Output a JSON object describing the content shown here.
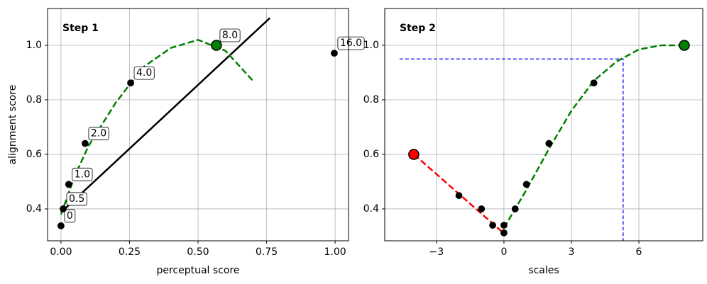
{
  "chart_data": [
    {
      "type": "scatter",
      "title": "Step 1",
      "xlabel": "perceptual score",
      "ylabel": "alignment score",
      "xlim": [
        -0.049,
        1.049
      ],
      "ylim": [
        0.283,
        1.135
      ],
      "xticks": [
        {
          "value": 0,
          "label": "0.00"
        },
        {
          "value": 0.25,
          "label": "0.25"
        },
        {
          "value": 0.5,
          "label": "0.50"
        },
        {
          "value": 0.75,
          "label": "0.75"
        },
        {
          "value": 1,
          "label": "1.00"
        }
      ],
      "yticks": [
        0.4,
        0.6,
        0.8,
        {
          "value": 1,
          "label": "1.0"
        }
      ],
      "grid": true,
      "series": [
        {
          "kind": "line",
          "color": "#000000",
          "dash": "solid",
          "x": [
            0,
            0.762
          ],
          "values": [
            0.387,
            1.1
          ]
        },
        {
          "kind": "line",
          "color": "#007f00",
          "dash": "dashed",
          "x": [
            0,
            0.05,
            0.1,
            0.2,
            0.3,
            0.4,
            0.5,
            0.6,
            0.7
          ],
          "values": [
            0.38,
            0.52,
            0.63,
            0.79,
            0.92,
            0.99,
            1.02,
            0.98,
            0.87
          ]
        },
        {
          "kind": "scatter",
          "color": "#000000",
          "marker": "small",
          "x": [
            0,
            0.008,
            0.028,
            0.088,
            0.254,
            0.997
          ],
          "values": [
            0.338,
            0.4,
            0.49,
            0.64,
            0.862,
            0.971
          ],
          "point_labels": [
            "0",
            "0.5",
            "1.0",
            "2.0",
            "4.0",
            "16.0"
          ]
        },
        {
          "kind": "scatter",
          "color": "#008000",
          "marker": "large",
          "x": [
            0.567
          ],
          "values": [
            1.0
          ],
          "point_labels": [
            "8.0"
          ]
        }
      ]
    },
    {
      "type": "scatter",
      "title": "Step 2",
      "xlabel": "scales",
      "xlim": [
        -5.3,
        8.84
      ],
      "ylim": [
        0.283,
        1.135
      ],
      "xticks": [
        {
          "value": -3,
          "label": "−3"
        },
        0,
        3,
        6
      ],
      "yticks": [
        0.4,
        0.6,
        0.8,
        {
          "value": 1,
          "label": "1.0"
        }
      ],
      "grid": true,
      "series": [
        {
          "kind": "line",
          "color": "#0000ff",
          "dash": "dashed-thin",
          "x": [
            -4.64,
            5.3,
            5.3
          ],
          "values": [
            0.95,
            0.95,
            0.28
          ]
        },
        {
          "kind": "line",
          "color": "#ff0000",
          "dash": "dashed",
          "x": [
            -4,
            0
          ],
          "values": [
            0.6,
            0.31
          ]
        },
        {
          "kind": "line",
          "color": "#007f00",
          "dash": "dashed",
          "x": [
            0,
            1,
            2,
            3,
            4,
            5,
            6,
            7,
            8
          ],
          "values": [
            0.33,
            0.47,
            0.62,
            0.76,
            0.87,
            0.94,
            0.985,
            1.0,
            1.0
          ]
        },
        {
          "kind": "scatter",
          "color": "#000000",
          "marker": "small",
          "x": [
            -2,
            -1,
            -0.5,
            0,
            0,
            0.5,
            1,
            2,
            4
          ],
          "values": [
            0.449,
            0.4,
            0.34,
            0.312,
            0.34,
            0.4,
            0.49,
            0.64,
            0.862
          ]
        },
        {
          "kind": "scatter",
          "color": "#ff0000",
          "marker": "large",
          "x": [
            -4.01
          ],
          "values": [
            0.6
          ]
        },
        {
          "kind": "scatter",
          "color": "#008000",
          "marker": "large",
          "x": [
            8.02
          ],
          "values": [
            1.0
          ]
        }
      ]
    }
  ]
}
